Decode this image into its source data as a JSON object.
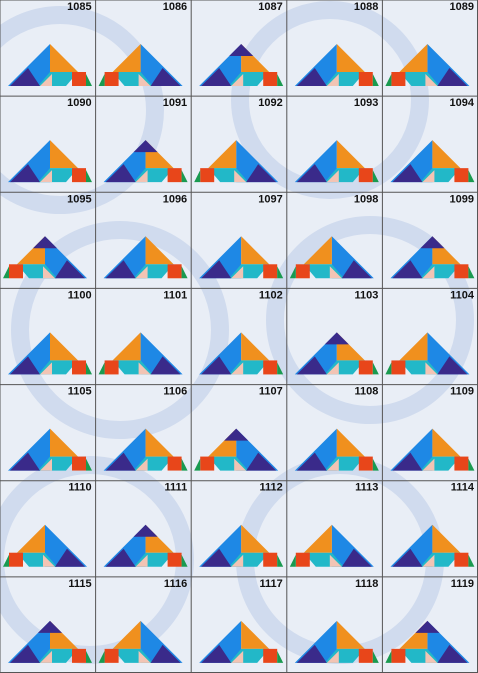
{
  "puzzles": [
    1085,
    1086,
    1087,
    1088,
    1089,
    1090,
    1091,
    1092,
    1093,
    1094,
    1095,
    1096,
    1097,
    1098,
    1099,
    1100,
    1101,
    1102,
    1103,
    1104,
    1105,
    1106,
    1107,
    1108,
    1109,
    1110,
    1111,
    1112,
    1113,
    1114,
    1115,
    1116,
    1117,
    1118,
    1119
  ]
}
